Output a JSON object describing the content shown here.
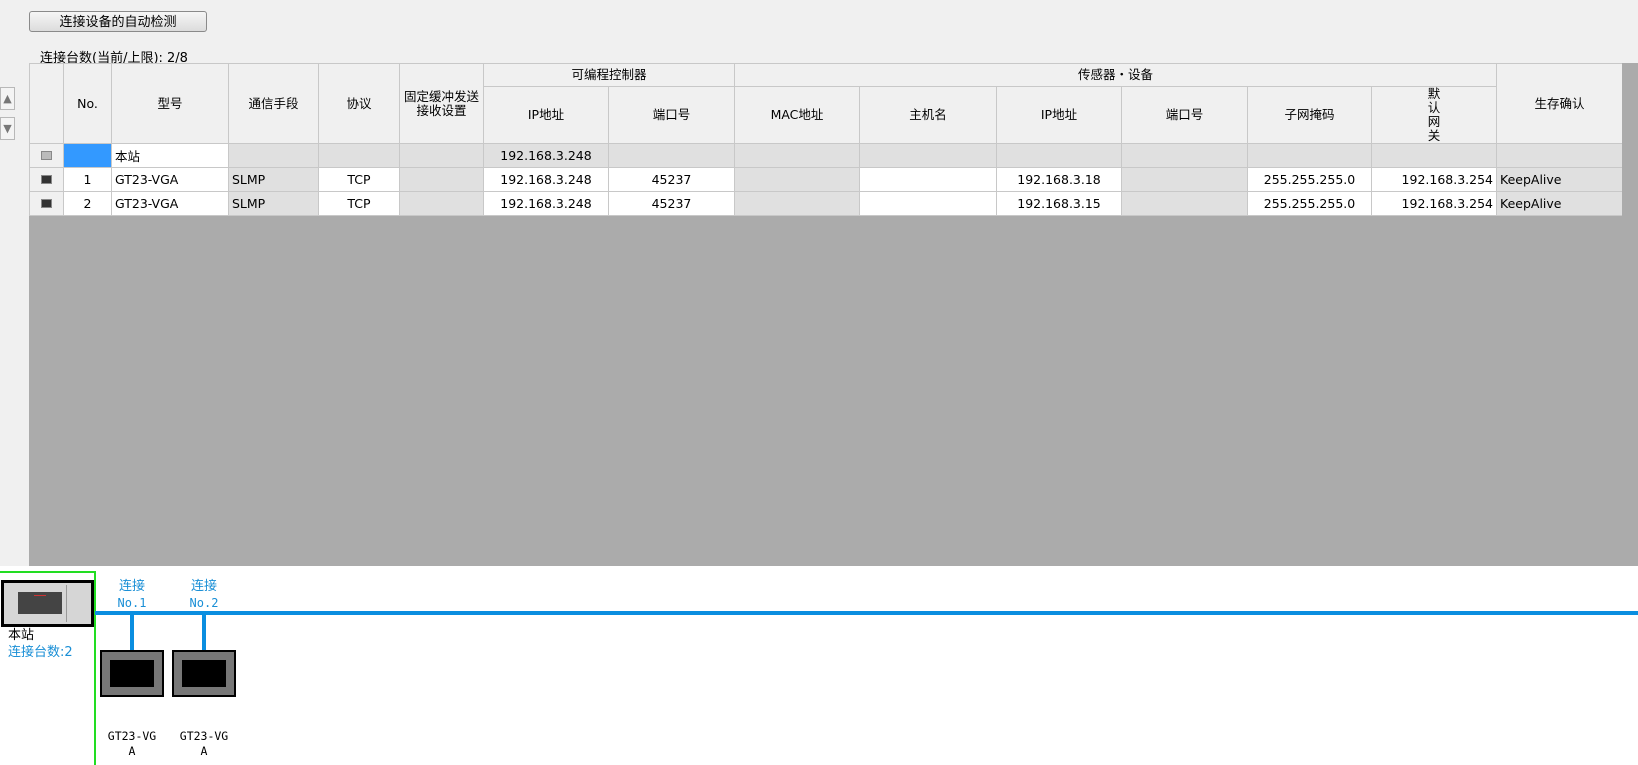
{
  "toolbar": {
    "auto_detect_label": "连接设备的自动检测"
  },
  "connection_count_label": "连接台数(当前/上限): 2/8",
  "table": {
    "headers": {
      "no": "No.",
      "model": "型号",
      "comm": "通信手段",
      "protocol": "协议",
      "fixed_buffer": "固定缓冲发送接收设置",
      "plc_group": "可编程控制器",
      "plc_ip": "IP地址",
      "plc_port": "端口号",
      "sensor_group": "传感器・设备",
      "mac": "MAC地址",
      "host": "主机名",
      "ip": "IP地址",
      "port": "端口号",
      "subnet": "子网掩码",
      "gateway": "默认网关",
      "alive": "生存确认"
    },
    "rows": [
      {
        "no": "",
        "model": "本站",
        "comm": "",
        "protocol": "",
        "fixed_buffer": "",
        "plc_ip": "192.168.3.248",
        "plc_port": "",
        "mac": "",
        "host": "",
        "ip": "",
        "port": "",
        "subnet": "",
        "gateway": "",
        "alive": ""
      },
      {
        "no": "1",
        "model": "GT23-VGA",
        "comm": "SLMP",
        "protocol": "TCP",
        "fixed_buffer": "",
        "plc_ip": "192.168.3.248",
        "plc_port": "45237",
        "mac": "",
        "host": "",
        "ip": "192.168.3.18",
        "port": "",
        "subnet": "255.255.255.0",
        "gateway": "192.168.3.254",
        "alive": "KeepAlive"
      },
      {
        "no": "2",
        "model": "GT23-VGA",
        "comm": "SLMP",
        "protocol": "TCP",
        "fixed_buffer": "",
        "plc_ip": "192.168.3.248",
        "plc_port": "45237",
        "mac": "",
        "host": "",
        "ip": "192.168.3.15",
        "port": "",
        "subnet": "255.255.255.0",
        "gateway": "192.168.3.254",
        "alive": "KeepAlive"
      }
    ]
  },
  "diagram": {
    "station_label": "本站",
    "station_count": "连接台数:2",
    "connections": [
      {
        "label": "连接",
        "no": "No.1",
        "device_line1": "GT23-VG",
        "device_line2": "A"
      },
      {
        "label": "连接",
        "no": "No.2",
        "device_line1": "GT23-VG",
        "device_line2": "A"
      }
    ],
    "colors": {
      "bus": "#0a8ee0",
      "selection": "#22dd22"
    }
  }
}
